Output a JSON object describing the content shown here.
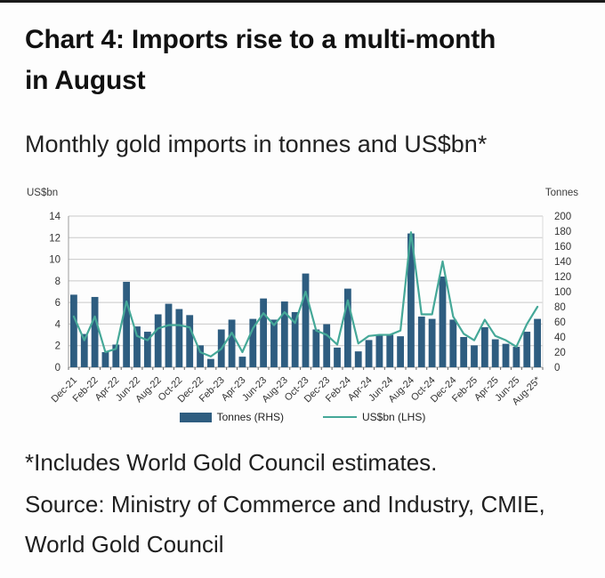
{
  "header": {
    "title_line1": "Chart 4: Imports rise to a multi-month",
    "title_line2": "in August",
    "subtitle": "Monthly gold imports in tonnes and US$bn*"
  },
  "chart_data": {
    "type": "combo",
    "categories": [
      "Dec-21",
      "Jan-22",
      "Feb-22",
      "Mar-22",
      "Apr-22",
      "May-22",
      "Jun-22",
      "Jul-22",
      "Aug-22",
      "Sep-22",
      "Oct-22",
      "Nov-22",
      "Dec-22",
      "Jan-23",
      "Feb-23",
      "Mar-23",
      "Apr-23",
      "May-23",
      "Jun-23",
      "Jul-23",
      "Aug-23",
      "Sep-23",
      "Oct-23",
      "Nov-23",
      "Dec-23",
      "Jan-24",
      "Feb-24",
      "Mar-24",
      "Apr-24",
      "May-24",
      "Jun-24",
      "Jul-24",
      "Aug-24",
      "Sep-24",
      "Oct-24",
      "Nov-24",
      "Dec-24",
      "Jan-25",
      "Feb-25",
      "Mar-25",
      "Apr-25",
      "May-25",
      "Jun-25",
      "Jul-25",
      "Aug-25*"
    ],
    "x_tick_labels": [
      "Dec-21",
      "Feb-22",
      "Apr-22",
      "Jun-22",
      "Aug-22",
      "Oct-22",
      "Dec-22",
      "Feb-23",
      "Apr-23",
      "Jun-23",
      "Aug-23",
      "Oct-23",
      "Dec-23",
      "Feb-24",
      "Apr-24",
      "Jun-24",
      "Aug-24",
      "Oct-24",
      "Dec-24",
      "Feb-25",
      "Apr-25",
      "Jun-25",
      "Aug-25*"
    ],
    "series": [
      {
        "name": "Tonnes (RHS)",
        "type": "bar",
        "axis": "right",
        "values": [
          96,
          44,
          93,
          20,
          30,
          113,
          54,
          47,
          70,
          84,
          77,
          69,
          29,
          11,
          50,
          63,
          14,
          64,
          91,
          63,
          87,
          73,
          124,
          50,
          57,
          26,
          104,
          21,
          36,
          43,
          43,
          41,
          177,
          67,
          64,
          120,
          63,
          40,
          29,
          53,
          37,
          31,
          27,
          47,
          64
        ]
      },
      {
        "name": "US$bn (LHS)",
        "type": "line",
        "axis": "left",
        "values": [
          4.7,
          2.5,
          4.7,
          1.4,
          1.7,
          6.1,
          2.9,
          2.5,
          3.6,
          3.9,
          3.9,
          3.7,
          1.4,
          1.0,
          1.7,
          3.2,
          1.4,
          3.6,
          5.0,
          3.9,
          5.1,
          4.1,
          7.0,
          3.4,
          3.0,
          2.1,
          6.2,
          2.2,
          2.9,
          3.0,
          3.0,
          3.4,
          12.5,
          4.9,
          4.9,
          9.8,
          4.7,
          3.1,
          2.5,
          4.4,
          2.9,
          2.5,
          1.9,
          4.0,
          5.6
        ]
      }
    ],
    "axes": {
      "left": {
        "label": "US$bn",
        "min": 0,
        "max": 14,
        "step": 2
      },
      "right": {
        "label": "Tonnes",
        "min": 0,
        "max": 200,
        "step": 20
      }
    },
    "grid": true,
    "legend_position": "bottom",
    "colors": {
      "bar": "#2e5d80",
      "line": "#45a898",
      "grid": "#c9c9c9",
      "axis": "#9a9a9a",
      "text": "#3a3a3a"
    }
  },
  "footer": {
    "footnote": "*Includes World Gold Council estimates.",
    "source_line1": "Source: Ministry of Commerce and Industry, CMIE,",
    "source_line2": "World Gold Council"
  }
}
